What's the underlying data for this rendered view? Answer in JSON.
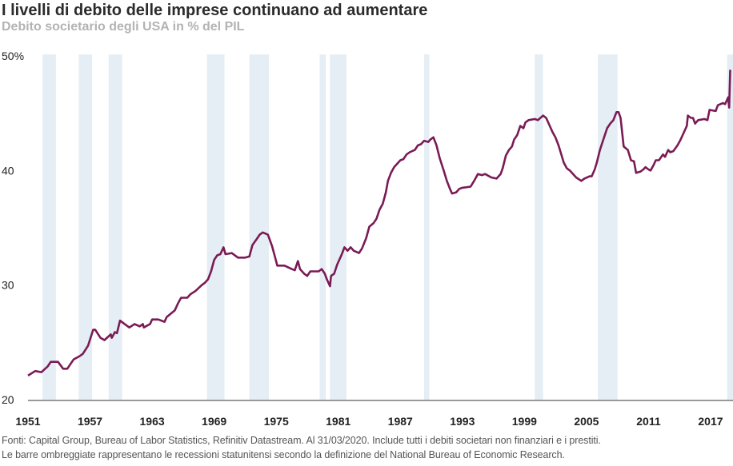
{
  "chart_data": {
    "type": "line",
    "title": "I livelli di debito delle imprese continuano ad aumentare",
    "subtitle": "Debito societario degli USA in % del PIL",
    "xlabel": "",
    "ylabel": "",
    "xlim": [
      1951,
      2019.2
    ],
    "ylim": [
      20,
      50
    ],
    "y_ticks": [
      {
        "value": 50,
        "label": "50%"
      },
      {
        "value": 40,
        "label": "40"
      },
      {
        "value": 30,
        "label": "30"
      },
      {
        "value": 20,
        "label": "20"
      }
    ],
    "x_ticks": [
      1951,
      1957,
      1963,
      1969,
      1975,
      1981,
      1987,
      1993,
      1999,
      2005,
      2011,
      2017
    ],
    "grid": false,
    "line_color": "#7a1b55",
    "recession_color": "#e5eef4",
    "recessions": [
      [
        1952.4,
        1953.7
      ],
      [
        1955.9,
        1957.2
      ],
      [
        1958.8,
        1960.1
      ],
      [
        1968.3,
        1970.0
      ],
      [
        1972.4,
        1974.3
      ],
      [
        1979.2,
        1979.8
      ],
      [
        1980.2,
        1981.8
      ],
      [
        1989.3,
        1989.8
      ],
      [
        2000.0,
        2000.8
      ],
      [
        2006.1,
        2008.0
      ],
      [
        2018.6,
        2019.2
      ]
    ],
    "series": [
      {
        "name": "Debito societario USA % PIL",
        "x": [
          1951.0,
          1951.7,
          1952.3,
          1952.9,
          1953.2,
          1953.9,
          1954.4,
          1954.8,
          1955.4,
          1956.0,
          1956.3,
          1956.8,
          1957.3,
          1957.5,
          1958.0,
          1958.4,
          1959.0,
          1959.1,
          1959.4,
          1959.6,
          1959.9,
          1960.5,
          1960.8,
          1961.3,
          1961.8,
          1962.1,
          1962.2,
          1962.8,
          1963.0,
          1963.6,
          1964.2,
          1964.4,
          1965.2,
          1965.5,
          1965.8,
          1966.4,
          1966.7,
          1967.2,
          1967.8,
          1968.1,
          1968.4,
          1968.7,
          1969.0,
          1969.3,
          1969.6,
          1969.9,
          1970.1,
          1970.7,
          1971.3,
          1972.0,
          1972.4,
          1972.7,
          1973.1,
          1973.4,
          1973.7,
          1974.2,
          1974.6,
          1974.9,
          1975.1,
          1975.8,
          1976.5,
          1976.8,
          1977.1,
          1977.3,
          1977.7,
          1978.0,
          1978.3,
          1979.1,
          1979.4,
          1979.7,
          1979.9,
          1980.2,
          1980.3,
          1980.6,
          1980.9,
          1981.3,
          1981.6,
          1981.9,
          1982.2,
          1982.5,
          1983.0,
          1983.3,
          1983.7,
          1984.0,
          1984.4,
          1984.7,
          1985.0,
          1985.3,
          1985.6,
          1985.8,
          1986.1,
          1986.4,
          1987.0,
          1987.3,
          1987.6,
          1987.9,
          1988.4,
          1988.7,
          1989.0,
          1989.3,
          1989.7,
          1989.9,
          1990.2,
          1990.5,
          1990.8,
          1991.2,
          1991.5,
          1991.8,
          1992.0,
          1992.4,
          1992.7,
          1993.0,
          1993.8,
          1994.2,
          1994.5,
          1994.9,
          1995.2,
          1995.8,
          1996.3,
          1996.7,
          1996.9,
          1997.2,
          1997.5,
          1997.8,
          1998.0,
          1998.3,
          1998.6,
          1998.9,
          1999.1,
          1999.4,
          2000.0,
          2000.3,
          2000.8,
          2001.1,
          2001.4,
          2001.7,
          2002.0,
          2002.3,
          2002.6,
          2002.8,
          2003.1,
          2003.4,
          2003.7,
          2004.0,
          2004.5,
          2004.8,
          2005.3,
          2005.5,
          2005.8,
          2006.0,
          2006.3,
          2006.7,
          2007.0,
          2007.3,
          2007.6,
          2007.9,
          2008.1,
          2008.3,
          2008.6,
          2009.0,
          2009.3,
          2009.6,
          2009.8,
          2010.2,
          2010.5,
          2010.7,
          2011.0,
          2011.2,
          2011.5,
          2011.7,
          2012.0,
          2012.4,
          2012.6,
          2012.9,
          2013.1,
          2013.4,
          2013.8,
          2014.1,
          2014.4,
          2014.7,
          2014.8,
          2015.1,
          2015.3,
          2015.5,
          2015.8,
          2016.4,
          2016.7,
          2016.9,
          2017.5,
          2017.7,
          2018.2,
          2018.4,
          2018.7,
          2018.8,
          2018.9
        ],
        "y": [
          22.1,
          22.5,
          22.4,
          22.9,
          23.3,
          23.3,
          22.7,
          22.7,
          23.5,
          23.8,
          24.0,
          24.7,
          26.1,
          26.1,
          25.4,
          25.2,
          25.7,
          25.4,
          25.9,
          25.8,
          26.9,
          26.5,
          26.3,
          26.6,
          26.4,
          26.6,
          26.3,
          26.6,
          27.0,
          27.0,
          26.8,
          27.2,
          27.8,
          28.4,
          28.9,
          28.9,
          29.2,
          29.5,
          30.0,
          30.2,
          30.5,
          31.2,
          32.2,
          32.6,
          32.7,
          33.3,
          32.7,
          32.8,
          32.4,
          32.4,
          32.5,
          33.5,
          34.0,
          34.4,
          34.6,
          34.4,
          33.4,
          32.4,
          31.7,
          31.7,
          31.4,
          31.3,
          32.1,
          31.4,
          31.0,
          30.8,
          31.2,
          31.2,
          31.4,
          31.0,
          30.5,
          29.9,
          30.8,
          31.0,
          31.8,
          32.6,
          33.3,
          33.0,
          33.3,
          33.0,
          32.8,
          33.2,
          34.1,
          35.1,
          35.4,
          35.8,
          36.6,
          37.1,
          38.1,
          39.1,
          39.8,
          40.3,
          40.9,
          41.0,
          41.4,
          41.6,
          41.8,
          42.2,
          42.3,
          42.6,
          42.5,
          42.7,
          42.9,
          42.2,
          41.1,
          40.0,
          39.1,
          38.4,
          38.0,
          38.1,
          38.4,
          38.5,
          38.6,
          39.2,
          39.7,
          39.6,
          39.7,
          39.4,
          39.3,
          39.7,
          40.2,
          41.3,
          41.8,
          42.1,
          42.7,
          43.1,
          43.9,
          43.7,
          44.2,
          44.4,
          44.5,
          44.4,
          44.8,
          44.6,
          44.0,
          43.4,
          42.9,
          42.2,
          41.3,
          40.7,
          40.2,
          40.0,
          39.7,
          39.4,
          39.1,
          39.3,
          39.5,
          39.5,
          40.1,
          40.7,
          41.8,
          42.9,
          43.7,
          44.1,
          44.4,
          45.1,
          45.1,
          44.6,
          42.1,
          41.8,
          40.9,
          40.8,
          39.8,
          39.9,
          40.1,
          40.3,
          40.1,
          40.0,
          40.5,
          40.9,
          40.9,
          41.4,
          41.2,
          41.8,
          41.6,
          41.7,
          42.2,
          42.7,
          43.3,
          43.9,
          44.8,
          44.6,
          44.6,
          44.1,
          44.4,
          44.5,
          44.4,
          45.3,
          45.2,
          45.7,
          45.9,
          45.8,
          46.4,
          45.5,
          48.8
        ]
      }
    ]
  },
  "footnotes": [
    "Fonti: Capital Group, Bureau of Labor Statistics, Refinitiv Datastream. Al 31/03/2020. Include tutti i debiti societari non finanziari e i prestiti.",
    "Le barre ombreggiate rappresentano le recessioni statunitensi secondo la definizione del National Bureau of Economic Research."
  ]
}
